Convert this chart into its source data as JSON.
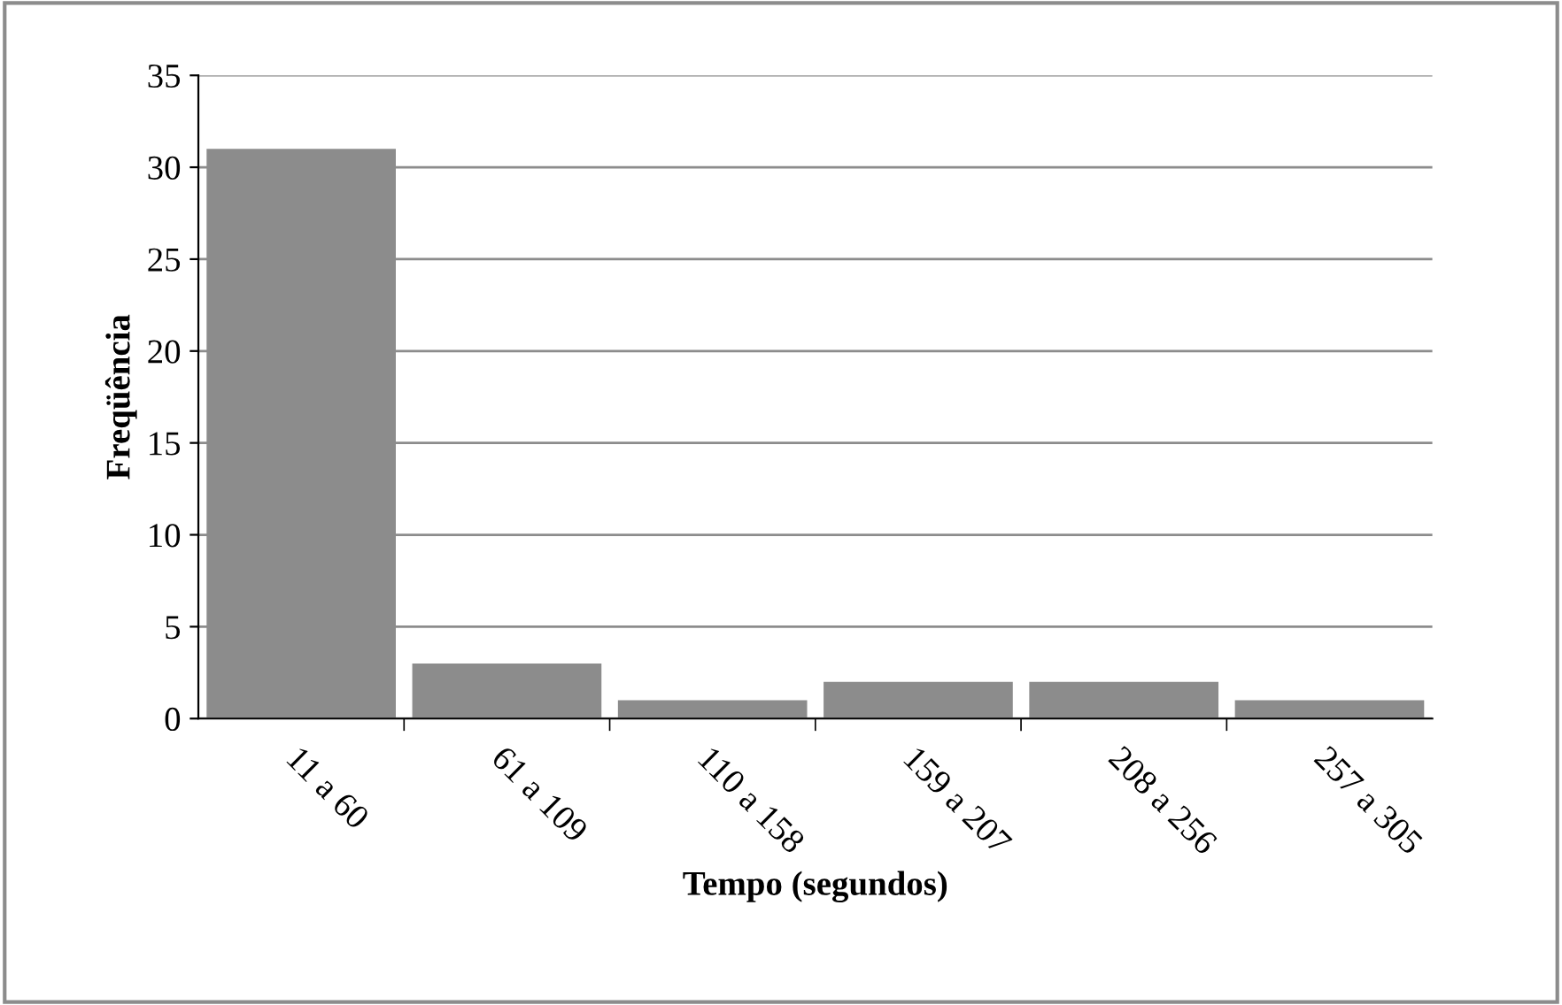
{
  "chart_data": {
    "type": "bar",
    "xlabel": "Tempo (segundos)",
    "ylabel": "Freqüência",
    "categories": [
      "11 a 60",
      "61 a 109",
      "110 a 158",
      "159 a 207",
      "208 a 256",
      "257 a 305"
    ],
    "values": [
      31,
      3,
      1,
      2,
      2,
      1
    ],
    "color": "#8c8c8c",
    "ylim": [
      0,
      35
    ],
    "yticks": [
      0,
      5,
      10,
      15,
      20,
      25,
      30,
      35
    ],
    "grid": "y"
  }
}
